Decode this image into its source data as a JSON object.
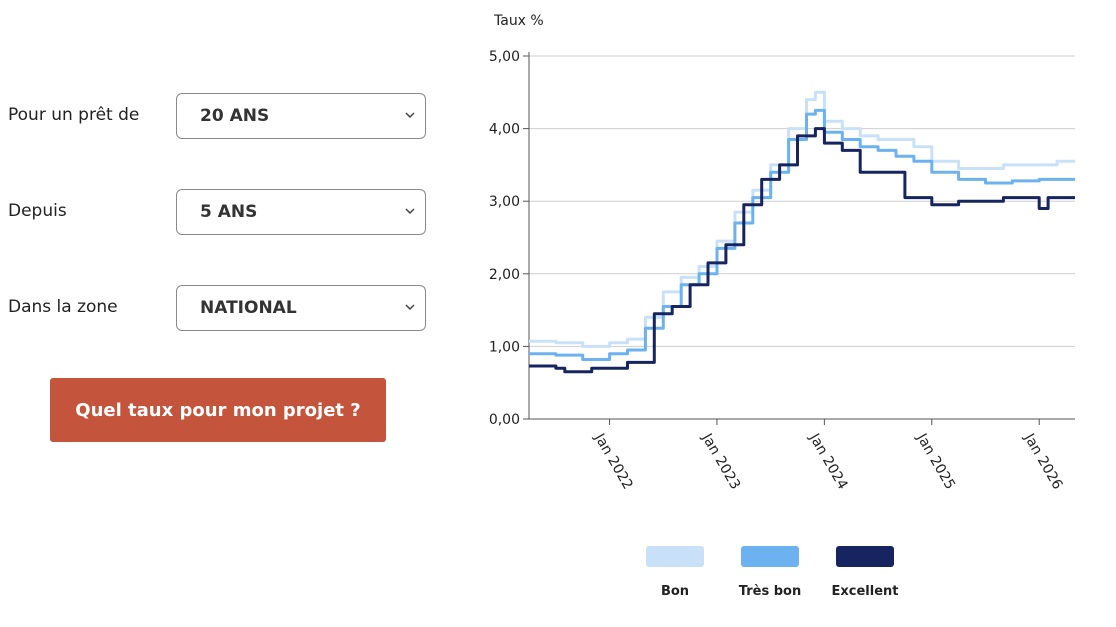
{
  "form": {
    "loan": {
      "label": "Pour un prêt de",
      "value": "20 ANS"
    },
    "since": {
      "label": "Depuis",
      "value": "5 ANS"
    },
    "zone": {
      "label": "Dans la zone",
      "value": "NATIONAL"
    },
    "cta_label": "Quel taux pour mon projet ?"
  },
  "colors": {
    "cta": "#c4543c",
    "bon": "#c9e1f8",
    "tres_bon": "#6cb2f0",
    "excellent": "#16255f"
  },
  "chart_data": {
    "type": "line",
    "title": "",
    "ylabel": "Taux %",
    "xlabel": "",
    "ylim": [
      0,
      5
    ],
    "xlim": [
      "2021-04",
      "2026-05"
    ],
    "yticks": [
      "0,00",
      "1,00",
      "2,00",
      "3,00",
      "4,00",
      "5,00"
    ],
    "xticks": [
      {
        "date": "2022-01",
        "label": "Jan 2022"
      },
      {
        "date": "2023-01",
        "label": "Jan 2023"
      },
      {
        "date": "2024-01",
        "label": "Jan 2024"
      },
      {
        "date": "2025-01",
        "label": "Jan 2025"
      },
      {
        "date": "2026-01",
        "label": "Jan 2026"
      }
    ],
    "grid": "horizontal",
    "legend": "bottom",
    "series": [
      {
        "name": "Bon",
        "color": "#c9e1f8",
        "points": [
          [
            "2021-04",
            1.07
          ],
          [
            "2021-07",
            1.05
          ],
          [
            "2021-10",
            1.0
          ],
          [
            "2022-01",
            1.05
          ],
          [
            "2022-03",
            1.1
          ],
          [
            "2022-05",
            1.4
          ],
          [
            "2022-07",
            1.75
          ],
          [
            "2022-09",
            1.95
          ],
          [
            "2022-11",
            2.1
          ],
          [
            "2023-01",
            2.45
          ],
          [
            "2023-03",
            2.85
          ],
          [
            "2023-05",
            3.15
          ],
          [
            "2023-07",
            3.5
          ],
          [
            "2023-09",
            4.0
          ],
          [
            "2023-11",
            4.4
          ],
          [
            "2023-12",
            4.5
          ],
          [
            "2024-01",
            4.1
          ],
          [
            "2024-03",
            4.0
          ],
          [
            "2024-05",
            3.9
          ],
          [
            "2024-07",
            3.85
          ],
          [
            "2024-09",
            3.85
          ],
          [
            "2024-11",
            3.75
          ],
          [
            "2025-01",
            3.55
          ],
          [
            "2025-04",
            3.45
          ],
          [
            "2025-06",
            3.45
          ],
          [
            "2025-09",
            3.5
          ],
          [
            "2025-12",
            3.5
          ],
          [
            "2026-03",
            3.55
          ],
          [
            "2026-05",
            3.55
          ]
        ]
      },
      {
        "name": "Très bon",
        "color": "#6cb2f0",
        "points": [
          [
            "2021-04",
            0.9
          ],
          [
            "2021-07",
            0.88
          ],
          [
            "2021-10",
            0.82
          ],
          [
            "2022-01",
            0.9
          ],
          [
            "2022-03",
            0.95
          ],
          [
            "2022-05",
            1.25
          ],
          [
            "2022-07",
            1.55
          ],
          [
            "2022-09",
            1.85
          ],
          [
            "2022-11",
            2.0
          ],
          [
            "2023-01",
            2.35
          ],
          [
            "2023-03",
            2.7
          ],
          [
            "2023-05",
            3.05
          ],
          [
            "2023-07",
            3.4
          ],
          [
            "2023-09",
            3.85
          ],
          [
            "2023-11",
            4.2
          ],
          [
            "2023-12",
            4.25
          ],
          [
            "2024-01",
            3.95
          ],
          [
            "2024-03",
            3.85
          ],
          [
            "2024-05",
            3.75
          ],
          [
            "2024-07",
            3.7
          ],
          [
            "2024-09",
            3.62
          ],
          [
            "2024-11",
            3.55
          ],
          [
            "2025-01",
            3.4
          ],
          [
            "2025-04",
            3.3
          ],
          [
            "2025-07",
            3.25
          ],
          [
            "2025-10",
            3.28
          ],
          [
            "2026-01",
            3.3
          ],
          [
            "2026-03",
            3.3
          ],
          [
            "2026-05",
            3.3
          ]
        ]
      },
      {
        "name": "Excellent",
        "color": "#16255f",
        "points": [
          [
            "2021-04",
            0.73
          ],
          [
            "2021-07",
            0.7
          ],
          [
            "2021-08",
            0.65
          ],
          [
            "2021-11",
            0.7
          ],
          [
            "2022-03",
            0.78
          ],
          [
            "2022-06",
            0.8
          ],
          [
            "2022-06",
            1.45
          ],
          [
            "2022-08",
            1.55
          ],
          [
            "2022-10",
            1.85
          ],
          [
            "2022-12",
            2.15
          ],
          [
            "2023-02",
            2.4
          ],
          [
            "2023-04",
            2.95
          ],
          [
            "2023-06",
            3.3
          ],
          [
            "2023-08",
            3.5
          ],
          [
            "2023-10",
            3.9
          ],
          [
            "2023-12",
            4.0
          ],
          [
            "2024-01",
            3.8
          ],
          [
            "2024-03",
            3.7
          ],
          [
            "2024-05",
            3.4
          ],
          [
            "2024-09",
            3.4
          ],
          [
            "2024-10",
            3.05
          ],
          [
            "2024-12",
            3.05
          ],
          [
            "2025-01",
            2.95
          ],
          [
            "2025-04",
            3.0
          ],
          [
            "2025-09",
            3.05
          ],
          [
            "2025-12",
            3.05
          ],
          [
            "2026-01",
            2.9
          ],
          [
            "2026-02",
            3.05
          ],
          [
            "2026-05",
            3.05
          ]
        ]
      }
    ]
  }
}
